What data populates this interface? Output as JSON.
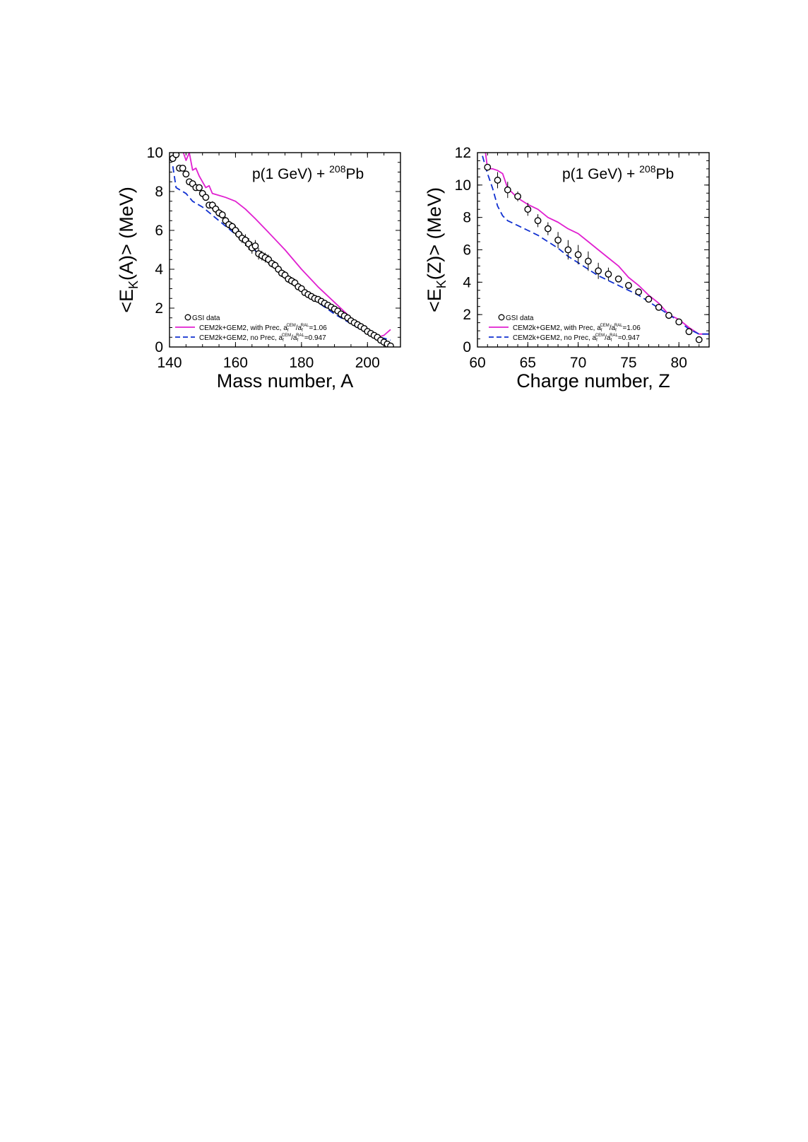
{
  "colors": {
    "with_prec": "#e020d0",
    "no_prec": "#1030d0",
    "data": "#000000"
  },
  "chart_data": [
    {
      "type": "line",
      "annotation_prefix": "p(1 GeV) + ",
      "annotation_superscript": "208",
      "annotation_suffix": "Pb",
      "ylabel_prefix": "<E",
      "ylabel_sub": "K",
      "ylabel_suffix": "(A)> (MeV)",
      "xlabel": "Mass number, A",
      "xlim": [
        140,
        210
      ],
      "ylim": [
        0,
        10
      ],
      "xticks": [
        "140",
        "160",
        "180",
        "200"
      ],
      "yticks": [
        "0",
        "2",
        "4",
        "6",
        "8",
        "10"
      ],
      "grid": false,
      "legend_position": "bottom-left",
      "legend": [
        {
          "key": "data",
          "label": "GSI data"
        },
        {
          "key": "with_prec",
          "pre": "CEM2k+GEM2, with Prec, a",
          "s1": "f",
          "p1": "CEM",
          "mid": "/a",
          "s2": "f",
          "p2": "RAL",
          "post": "=1.06"
        },
        {
          "key": "no_prec",
          "pre": "CEM2k+GEM2, no Prec, a",
          "s1": "f",
          "p1": "CEM",
          "mid": "/a",
          "s2": "f",
          "p2": "RAL",
          "post": "=0.947"
        }
      ],
      "series": [
        {
          "key": "with_prec",
          "x": [
            141,
            142,
            143,
            144,
            145,
            146,
            147,
            148,
            149,
            150,
            151,
            152,
            153,
            155,
            157,
            160,
            163,
            166,
            170,
            175,
            180,
            185,
            190,
            195,
            200,
            203,
            205,
            207
          ],
          "y": [
            11.0,
            10.6,
            10.2,
            10.1,
            9.6,
            10.0,
            9.1,
            9.2,
            8.8,
            8.5,
            8.2,
            8.3,
            7.9,
            7.8,
            7.7,
            7.5,
            7.1,
            6.6,
            5.9,
            5.0,
            4.0,
            3.1,
            2.3,
            1.5,
            0.8,
            0.5,
            0.6,
            0.9
          ]
        },
        {
          "key": "no_prec",
          "x": [
            141,
            142,
            143,
            145,
            147,
            150,
            155,
            160,
            165,
            170,
            175,
            180,
            185,
            190,
            195,
            200,
            203,
            205,
            207
          ],
          "y": [
            9.3,
            8.2,
            8.1,
            7.9,
            7.5,
            7.2,
            6.5,
            5.8,
            5.1,
            4.4,
            3.7,
            2.9,
            2.3,
            1.7,
            1.2,
            0.7,
            0.5,
            0.45,
            0.35
          ]
        }
      ],
      "points": {
        "key": "data",
        "x": [
          141,
          142,
          143,
          144,
          145,
          146,
          147,
          148,
          149,
          150,
          151,
          152,
          153,
          154,
          155,
          156,
          157,
          158,
          159,
          160,
          161,
          162,
          163,
          164,
          165,
          166,
          167,
          168,
          169,
          170,
          171,
          172,
          173,
          174,
          175,
          176,
          177,
          178,
          179,
          180,
          181,
          182,
          183,
          184,
          185,
          186,
          187,
          188,
          189,
          190,
          191,
          192,
          193,
          194,
          195,
          196,
          197,
          198,
          199,
          200,
          201,
          202,
          203,
          204,
          205,
          206,
          207
        ],
        "y": [
          9.7,
          9.9,
          9.2,
          9.2,
          8.9,
          8.5,
          8.4,
          8.2,
          8.2,
          7.9,
          7.7,
          7.3,
          7.3,
          7.1,
          6.9,
          6.8,
          6.5,
          6.3,
          6.2,
          6.0,
          5.8,
          5.6,
          5.5,
          5.3,
          5.1,
          5.2,
          4.8,
          4.7,
          4.6,
          4.5,
          4.3,
          4.2,
          4.0,
          3.8,
          3.7,
          3.5,
          3.4,
          3.3,
          3.1,
          3.0,
          2.8,
          2.7,
          2.6,
          2.5,
          2.45,
          2.35,
          2.25,
          2.15,
          2.05,
          1.95,
          1.85,
          1.7,
          1.6,
          1.5,
          1.35,
          1.25,
          1.15,
          1.05,
          0.95,
          0.8,
          0.7,
          0.6,
          0.5,
          0.35,
          0.25,
          0.15,
          0.05
        ],
        "err": [
          0.15,
          0.15,
          0.15,
          0.15,
          0.15,
          0.15,
          0.15,
          0.15,
          0.15,
          0.15,
          0.15,
          0.15,
          0.2,
          0.2,
          0.2,
          0.2,
          0.2,
          0.2,
          0.2,
          0.25,
          0.25,
          0.25,
          0.3,
          0.3,
          0.3,
          0.3,
          0.3,
          0.25,
          0.25,
          0.25,
          0.2,
          0.2,
          0.2,
          0.2,
          0.2,
          0.2,
          0.2,
          0.2,
          0.15,
          0.15,
          0.15,
          0.15,
          0.15,
          0.15,
          0.15,
          0.15,
          0.15,
          0.15,
          0.15,
          0.15,
          0.15,
          0.15,
          0.15,
          0.15,
          0.1,
          0.1,
          0.1,
          0.1,
          0.1,
          0.1,
          0.1,
          0.1,
          0.1,
          0.1,
          0.1,
          0.1,
          0.1
        ]
      }
    },
    {
      "type": "line",
      "annotation_prefix": "p(1 GeV) + ",
      "annotation_superscript": "208",
      "annotation_suffix": "Pb",
      "ylabel_prefix": "<E",
      "ylabel_sub": "K",
      "ylabel_suffix": "(Z)> (MeV)",
      "xlabel": "Charge number, Z",
      "xlim": [
        60,
        83
      ],
      "ylim": [
        0,
        12
      ],
      "xticks": [
        "60",
        "65",
        "70",
        "75",
        "80"
      ],
      "yticks": [
        "0",
        "2",
        "4",
        "6",
        "8",
        "10",
        "12"
      ],
      "grid": false,
      "legend_position": "bottom-left",
      "legend": [
        {
          "key": "data",
          "label": "GSI data"
        },
        {
          "key": "with_prec",
          "pre": "CEM2k+GEM2, with Prec, a",
          "s1": "f",
          "p1": "CEM",
          "mid": "/a",
          "s2": "f",
          "p2": "RAL",
          "post": "=1.06"
        },
        {
          "key": "no_prec",
          "pre": "CEM2k+GEM2, no Prec, a",
          "s1": "f",
          "p1": "CEM",
          "mid": "/a",
          "s2": "f",
          "p2": "RAL",
          "post": "=0.947"
        }
      ],
      "series": [
        {
          "key": "with_prec",
          "x": [
            60.8,
            61.0,
            61.5,
            62.0,
            62.5,
            63.0,
            64.0,
            65.0,
            66.0,
            67.0,
            68.0,
            69.0,
            70.0,
            71.0,
            72.0,
            73.0,
            74.0,
            75.0,
            76.0,
            77.0,
            78.0,
            79.0,
            80.0,
            81.0,
            82.0,
            83.0
          ],
          "y": [
            12.0,
            11.0,
            11.0,
            10.9,
            10.7,
            9.8,
            9.2,
            8.8,
            8.5,
            8.0,
            7.7,
            7.3,
            7.0,
            6.5,
            6.0,
            5.5,
            5.0,
            4.3,
            3.8,
            3.2,
            2.7,
            2.0,
            1.7,
            1.2,
            0.8,
            0.8
          ]
        },
        {
          "key": "no_prec",
          "x": [
            60.5,
            61.0,
            61.5,
            62.0,
            62.5,
            63.0,
            64.0,
            65.0,
            66.0,
            67.0,
            68.0,
            69.0,
            70.0,
            71.0,
            72.0,
            73.0,
            74.0,
            75.0,
            76.0,
            77.0,
            78.0,
            79.0,
            80.0,
            81.0,
            82.0,
            83.0
          ],
          "y": [
            11.8,
            10.7,
            9.8,
            8.7,
            8.1,
            7.8,
            7.5,
            7.2,
            6.9,
            6.5,
            6.1,
            5.6,
            5.2,
            4.8,
            4.4,
            4.1,
            3.8,
            3.5,
            3.2,
            2.8,
            2.4,
            2.0,
            1.6,
            1.1,
            0.8,
            0.8
          ]
        }
      ],
      "points": {
        "key": "data",
        "x": [
          61,
          62,
          63,
          64,
          65,
          66,
          67,
          68,
          69,
          70,
          71,
          72,
          73,
          74,
          75,
          76,
          77,
          78,
          79,
          80,
          81,
          82
        ],
        "y": [
          11.1,
          10.3,
          9.7,
          9.3,
          8.5,
          7.8,
          7.3,
          6.6,
          6.0,
          5.7,
          5.3,
          4.7,
          4.5,
          4.2,
          3.8,
          3.4,
          2.95,
          2.45,
          1.95,
          1.55,
          0.95,
          0.45
        ],
        "err": [
          0.2,
          0.5,
          0.5,
          0.3,
          0.4,
          0.4,
          0.4,
          0.5,
          0.6,
          0.6,
          0.6,
          0.5,
          0.4,
          0.2,
          0.2,
          0.2,
          0.15,
          0.15,
          0.15,
          0.15,
          0.1,
          0.1
        ]
      }
    }
  ]
}
